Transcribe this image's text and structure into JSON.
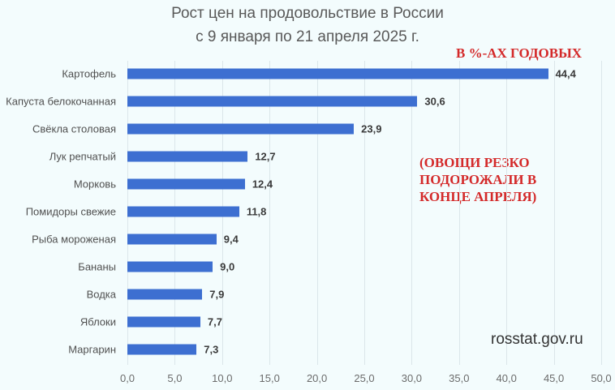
{
  "chart_data": {
    "type": "bar",
    "orientation": "horizontal",
    "title": "Рост цен на продовольствие в России с 9 января по 21 апреля 2025 г.",
    "title_lines": [
      "Рост цен на продовольствие в России",
      "с 9 января по 21 апреля 2025 г."
    ],
    "categories": [
      "Картофель",
      "Капуста белокочанная",
      "Свёкла столовая",
      "Лук репчатый",
      "Морковь",
      "Помидоры свежие",
      "Рыба мороженая",
      "Бананы",
      "Водка",
      "Яблоки",
      "Маргарин"
    ],
    "values": [
      44.4,
      30.6,
      23.9,
      12.7,
      12.4,
      11.8,
      9.4,
      9.0,
      7.9,
      7.7,
      7.3
    ],
    "value_labels": [
      "44,4",
      "30,6",
      "23,9",
      "12,7",
      "12,4",
      "11,8",
      "9,4",
      "9,0",
      "7,9",
      "7,7",
      "7,3"
    ],
    "xlabel": "",
    "ylabel": "",
    "xlim": [
      0,
      50
    ],
    "xticks": [
      "0,0",
      "5,0",
      "10,0",
      "15,0",
      "20,0",
      "25,0",
      "30,0",
      "35,0",
      "40,0",
      "45,0",
      "50,0"
    ],
    "grid": true,
    "legend": null,
    "bar_color": "#3d6fd1",
    "annotations": [
      "В %-АХ ГОДОВЫХ",
      "(ОВОЩИ РЕЗКО ПОДОРОЖАЛИ В КОНЦЕ АПРЕЛЯ)"
    ],
    "source": "rosstat.gov.ru"
  },
  "annotations": {
    "units": "В %-АХ ГОДОВЫХ",
    "note_lines": [
      "(ОВОЩИ РЕЗКО",
      "ПОДОРОЖАЛИ В",
      "КОНЦЕ АПРЕЛЯ)"
    ],
    "color": "#d42a2a"
  },
  "source": "rosstat.gov.ru"
}
